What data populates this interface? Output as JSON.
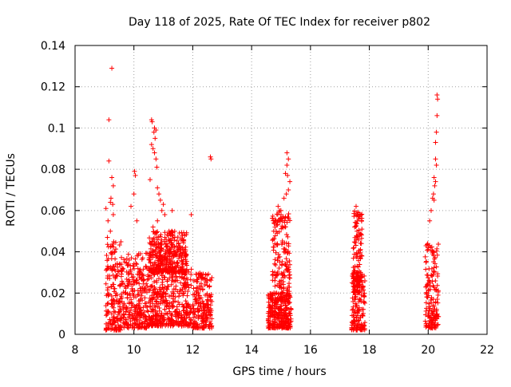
{
  "chart_data": {
    "type": "scatter",
    "title": "Day 118 of 2025, Rate Of TEC Index for receiver p802",
    "xlabel": "GPS time / hours",
    "ylabel": "ROTI / TECUs",
    "xlim": [
      8,
      22
    ],
    "ylim": [
      0,
      0.14
    ],
    "xticks": [
      8,
      10,
      12,
      14,
      16,
      18,
      20,
      22
    ],
    "yticks": [
      0,
      0.02,
      0.04,
      0.06,
      0.08,
      0.1,
      0.12,
      0.14
    ],
    "xtick_labels": [
      "8",
      "10",
      "12",
      "14",
      "16",
      "18",
      "20",
      "22"
    ],
    "ytick_labels": [
      "0",
      "0.02",
      "0.04",
      "0.06",
      "0.08",
      "0.1",
      "0.12",
      "0.14"
    ],
    "grid": true,
    "marker": "+",
    "color": "#ff0000",
    "clusters": [
      {
        "x_range": [
          9.05,
          9.6
        ],
        "y_range": [
          0.002,
          0.045
        ]
      },
      {
        "x_range": [
          9.6,
          10.45
        ],
        "y_range": [
          0.003,
          0.04
        ]
      },
      {
        "x_range": [
          10.45,
          11.95
        ],
        "y_range": [
          0.004,
          0.032
        ]
      },
      {
        "x_range": [
          10.5,
          11.8
        ],
        "y_range": [
          0.03,
          0.05
        ]
      },
      {
        "x_range": [
          12.0,
          12.65
        ],
        "y_range": [
          0.003,
          0.03
        ]
      },
      {
        "x_range": [
          14.55,
          15.35
        ],
        "y_range": [
          0.003,
          0.02
        ]
      },
      {
        "x_range": [
          14.7,
          15.3
        ],
        "y_range": [
          0.015,
          0.06
        ]
      },
      {
        "x_range": [
          17.4,
          17.85
        ],
        "y_range": [
          0.002,
          0.03
        ]
      },
      {
        "x_range": [
          17.45,
          17.75
        ],
        "y_range": [
          0.02,
          0.06
        ]
      },
      {
        "x_range": [
          19.9,
          20.35
        ],
        "y_range": [
          0.003,
          0.045
        ]
      }
    ],
    "points": [
      [
        9.25,
        0.129
      ],
      [
        9.15,
        0.104
      ],
      [
        9.15,
        0.084
      ],
      [
        9.25,
        0.076
      ],
      [
        9.3,
        0.072
      ],
      [
        9.2,
        0.064
      ],
      [
        9.28,
        0.063
      ],
      [
        9.05,
        0.061
      ],
      [
        9.12,
        0.055
      ],
      [
        9.2,
        0.05
      ],
      [
        9.1,
        0.047
      ],
      [
        9.3,
        0.058
      ],
      [
        9.22,
        0.066
      ],
      [
        10.02,
        0.079
      ],
      [
        10.05,
        0.077
      ],
      [
        10.0,
        0.068
      ],
      [
        9.9,
        0.062
      ],
      [
        10.1,
        0.055
      ],
      [
        10.6,
        0.104
      ],
      [
        10.62,
        0.103
      ],
      [
        10.7,
        0.1
      ],
      [
        10.75,
        0.099
      ],
      [
        10.68,
        0.098
      ],
      [
        10.72,
        0.095
      ],
      [
        10.6,
        0.092
      ],
      [
        10.65,
        0.09
      ],
      [
        10.7,
        0.088
      ],
      [
        10.75,
        0.085
      ],
      [
        10.78,
        0.081
      ],
      [
        10.55,
        0.075
      ],
      [
        10.8,
        0.071
      ],
      [
        10.85,
        0.068
      ],
      [
        10.9,
        0.065
      ],
      [
        11.0,
        0.063
      ],
      [
        10.95,
        0.06
      ],
      [
        11.05,
        0.058
      ],
      [
        10.8,
        0.055
      ],
      [
        10.65,
        0.052
      ],
      [
        11.3,
        0.06
      ],
      [
        11.95,
        0.058
      ],
      [
        12.6,
        0.086
      ],
      [
        12.62,
        0.085
      ],
      [
        15.2,
        0.088
      ],
      [
        15.25,
        0.085
      ],
      [
        15.2,
        0.082
      ],
      [
        15.15,
        0.078
      ],
      [
        15.22,
        0.077
      ],
      [
        15.3,
        0.074
      ],
      [
        15.25,
        0.07
      ],
      [
        15.18,
        0.068
      ],
      [
        15.1,
        0.066
      ],
      [
        14.9,
        0.062
      ],
      [
        14.95,
        0.06
      ],
      [
        15.0,
        0.058
      ],
      [
        15.05,
        0.055
      ],
      [
        14.85,
        0.053
      ],
      [
        14.75,
        0.05
      ],
      [
        17.55,
        0.062
      ],
      [
        17.55,
        0.058
      ],
      [
        17.6,
        0.055
      ],
      [
        17.5,
        0.052
      ],
      [
        17.58,
        0.05
      ],
      [
        20.3,
        0.116
      ],
      [
        20.32,
        0.114
      ],
      [
        20.3,
        0.106
      ],
      [
        20.28,
        0.098
      ],
      [
        20.25,
        0.093
      ],
      [
        20.25,
        0.085
      ],
      [
        20.28,
        0.082
      ],
      [
        20.2,
        0.076
      ],
      [
        20.25,
        0.074
      ],
      [
        20.22,
        0.072
      ],
      [
        20.18,
        0.068
      ],
      [
        20.15,
        0.066
      ],
      [
        20.2,
        0.065
      ],
      [
        20.1,
        0.06
      ],
      [
        20.05,
        0.055
      ]
    ]
  }
}
